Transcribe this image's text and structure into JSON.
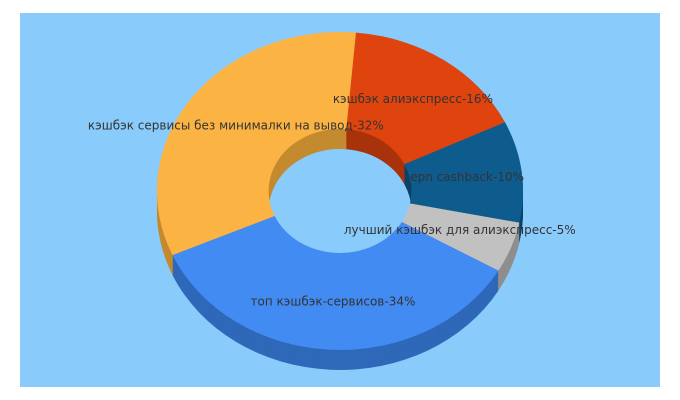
{
  "chart_data": {
    "type": "pie",
    "donut": true,
    "three_d": true,
    "background": "#89cbfa",
    "values": [
      16,
      10,
      5,
      34,
      32
    ],
    "value_labels": [
      "кэшбэк алиэкспресс-16%",
      "epn cashback-10%",
      "лучший кэшбэк для алиэкспресс-5%",
      "топ кэшбэк-сервисов-34%",
      "кэшбэк сервисы без минималки на вывод-32%"
    ],
    "colors": [
      "#e0440e",
      "#0e5c8e",
      "#c1c1c1",
      "#428bf2",
      "#fbb443"
    ],
    "side_colors": [
      "#a8330a",
      "#0a4468",
      "#8f8f8f",
      "#2f68b8",
      "#c48a2f"
    ]
  }
}
